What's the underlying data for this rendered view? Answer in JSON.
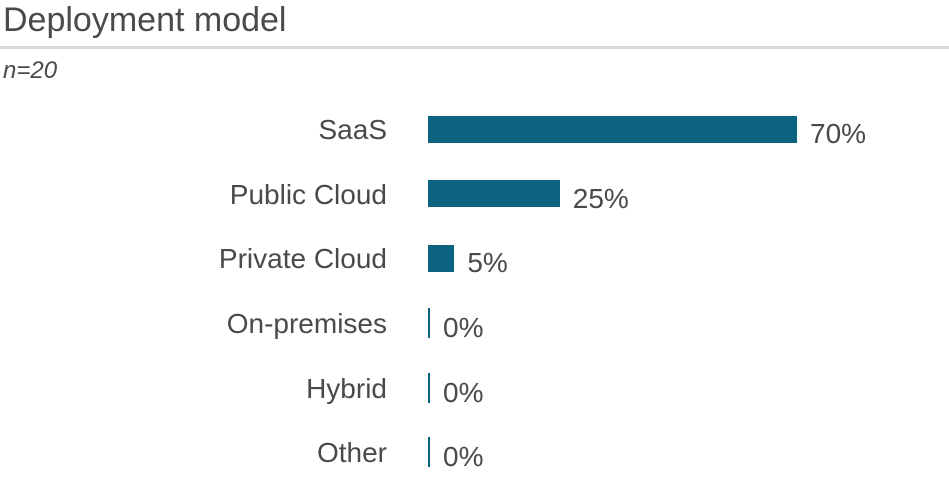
{
  "title": "Deployment model",
  "subtitle": "n=20",
  "colors": {
    "bar": "#0b6380",
    "divider": "#d9d9d9",
    "text": "#4a4a4a"
  },
  "chart_data": {
    "type": "bar",
    "orientation": "horizontal",
    "title": "Deployment model",
    "subtitle": "n=20",
    "sample_size": 20,
    "categories": [
      "SaaS",
      "Public Cloud",
      "Private Cloud",
      "On-premises",
      "Hybrid",
      "Other"
    ],
    "values": [
      70,
      25,
      5,
      0,
      0,
      0
    ],
    "value_labels": [
      "70%",
      "25%",
      "5%",
      "0%",
      "0%",
      "0%"
    ],
    "unit": "%",
    "xlim": [
      0,
      100
    ],
    "grid": false,
    "legend": false,
    "data_labels": "outside-end"
  }
}
